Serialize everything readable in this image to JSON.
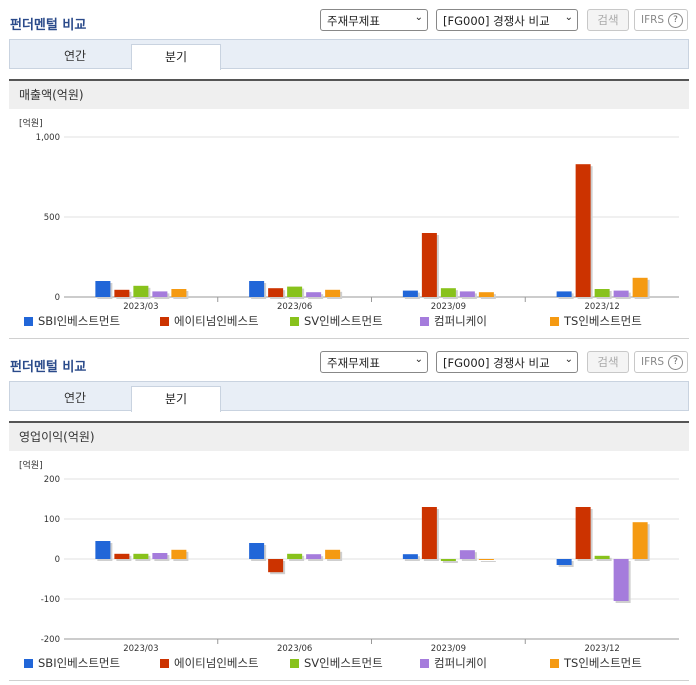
{
  "panels": [
    {
      "title": "펀더멘털 비교",
      "select_statement": "주재무제표",
      "select_compare": "[FG000] 경쟁사 비교",
      "search_label": "검색",
      "ifrs_label": "IFRS",
      "tabs": [
        "연간",
        "분기"
      ],
      "active_tab": "분기",
      "section_title": "매출액(억원)"
    },
    {
      "title": "펀더멘털 비교",
      "select_statement": "주재무제표",
      "select_compare": "[FG000] 경쟁사 비교",
      "search_label": "검색",
      "ifrs_label": "IFRS",
      "tabs": [
        "연간",
        "분기"
      ],
      "active_tab": "분기",
      "section_title": "영업이익(억원)"
    }
  ],
  "colors": [
    "#2166d8",
    "#cc3300",
    "#88c21c",
    "#a57cdc",
    "#f59a12"
  ],
  "chart_data": [
    {
      "type": "bar",
      "unit_label": "[억원]",
      "categories": [
        "2023/03",
        "2023/06",
        "2023/09",
        "2023/12"
      ],
      "ylim": [
        0,
        1000
      ],
      "yticks": [
        "0",
        "500",
        "1,000"
      ],
      "ytick_values": [
        0,
        500,
        1000
      ],
      "series": [
        {
          "name": "SBI인베스트먼트",
          "values": [
            100,
            100,
            40,
            35
          ]
        },
        {
          "name": "에이티넘인베스트",
          "values": [
            45,
            55,
            400,
            830
          ]
        },
        {
          "name": "SV인베스트먼트",
          "values": [
            70,
            65,
            55,
            50
          ]
        },
        {
          "name": "컴퍼니케이",
          "values": [
            35,
            30,
            35,
            40
          ]
        },
        {
          "name": "TS인베스트먼트",
          "values": [
            50,
            45,
            30,
            120
          ]
        }
      ]
    },
    {
      "type": "bar",
      "unit_label": "[억원]",
      "categories": [
        "2023/03",
        "2023/06",
        "2023/09",
        "2023/12"
      ],
      "ylim": [
        -200,
        200
      ],
      "yticks": [
        "-200",
        "-100",
        "0",
        "100",
        "200"
      ],
      "ytick_values": [
        -200,
        -100,
        0,
        100,
        200
      ],
      "series": [
        {
          "name": "SBI인베스트먼트",
          "values": [
            45,
            40,
            12,
            -15
          ]
        },
        {
          "name": "에이티넘인베스트",
          "values": [
            13,
            -33,
            130,
            130
          ]
        },
        {
          "name": "SV인베스트먼트",
          "values": [
            13,
            13,
            -5,
            8
          ]
        },
        {
          "name": "컴퍼니케이",
          "values": [
            15,
            12,
            22,
            -105
          ]
        },
        {
          "name": "TS인베스트먼트",
          "values": [
            23,
            23,
            0,
            92
          ]
        }
      ]
    }
  ]
}
